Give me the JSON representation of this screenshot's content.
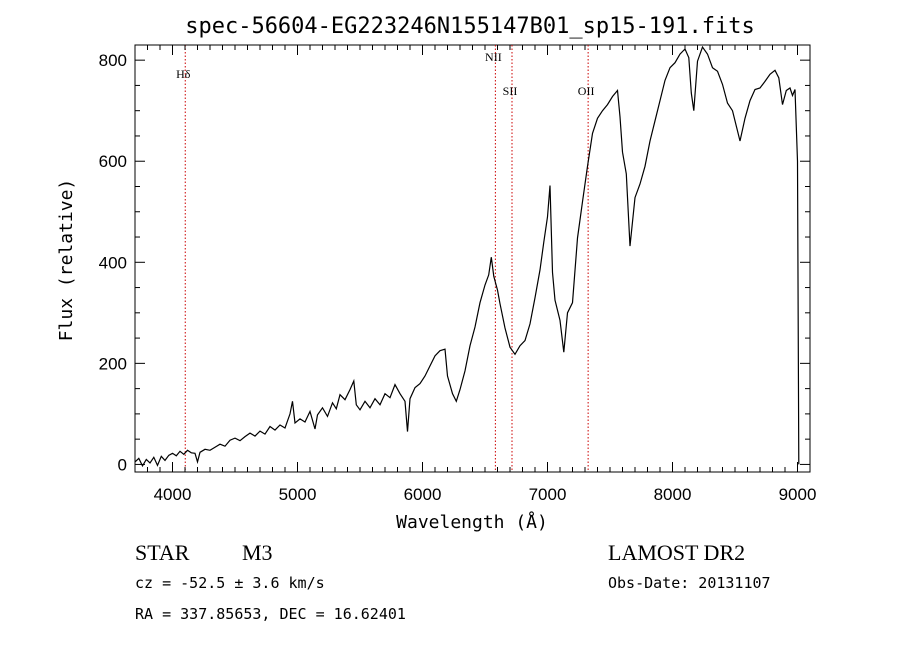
{
  "chart_data": {
    "type": "line",
    "title": "spec-56604-EG223246N155147B01_sp15-191.fits",
    "xlabel": "Wavelength (Å)",
    "ylabel": "Flux (relative)",
    "xlim": [
      3700,
      9100
    ],
    "ylim": [
      -15,
      830
    ],
    "x_ticks": [
      4000,
      5000,
      6000,
      7000,
      8000,
      9000
    ],
    "y_ticks": [
      0,
      200,
      400,
      600,
      800
    ],
    "grid": false,
    "series": [
      {
        "points": [
          [
            3700,
            5
          ],
          [
            3730,
            12
          ],
          [
            3760,
            -3
          ],
          [
            3790,
            10
          ],
          [
            3820,
            3
          ],
          [
            3850,
            14
          ],
          [
            3880,
            -2
          ],
          [
            3910,
            16
          ],
          [
            3940,
            8
          ],
          [
            3970,
            18
          ],
          [
            4000,
            22
          ],
          [
            4030,
            17
          ],
          [
            4060,
            26
          ],
          [
            4090,
            20
          ],
          [
            4120,
            28
          ],
          [
            4150,
            23
          ],
          [
            4180,
            22
          ],
          [
            4200,
            5
          ],
          [
            4220,
            24
          ],
          [
            4260,
            30
          ],
          [
            4300,
            28
          ],
          [
            4340,
            34
          ],
          [
            4380,
            40
          ],
          [
            4420,
            36
          ],
          [
            4460,
            48
          ],
          [
            4500,
            52
          ],
          [
            4540,
            47
          ],
          [
            4580,
            55
          ],
          [
            4620,
            62
          ],
          [
            4660,
            56
          ],
          [
            4700,
            66
          ],
          [
            4740,
            60
          ],
          [
            4780,
            75
          ],
          [
            4820,
            68
          ],
          [
            4860,
            78
          ],
          [
            4900,
            72
          ],
          [
            4940,
            100
          ],
          [
            4960,
            125
          ],
          [
            4980,
            82
          ],
          [
            5020,
            90
          ],
          [
            5060,
            84
          ],
          [
            5100,
            105
          ],
          [
            5140,
            70
          ],
          [
            5160,
            98
          ],
          [
            5200,
            112
          ],
          [
            5240,
            95
          ],
          [
            5280,
            122
          ],
          [
            5310,
            110
          ],
          [
            5340,
            138
          ],
          [
            5380,
            128
          ],
          [
            5420,
            148
          ],
          [
            5450,
            165
          ],
          [
            5470,
            118
          ],
          [
            5500,
            108
          ],
          [
            5540,
            125
          ],
          [
            5580,
            112
          ],
          [
            5620,
            130
          ],
          [
            5660,
            118
          ],
          [
            5700,
            140
          ],
          [
            5740,
            132
          ],
          [
            5780,
            158
          ],
          [
            5820,
            140
          ],
          [
            5860,
            125
          ],
          [
            5880,
            65
          ],
          [
            5900,
            130
          ],
          [
            5940,
            152
          ],
          [
            5980,
            160
          ],
          [
            6020,
            175
          ],
          [
            6060,
            195
          ],
          [
            6100,
            215
          ],
          [
            6140,
            225
          ],
          [
            6180,
            228
          ],
          [
            6200,
            175
          ],
          [
            6240,
            140
          ],
          [
            6270,
            125
          ],
          [
            6300,
            148
          ],
          [
            6340,
            185
          ],
          [
            6380,
            235
          ],
          [
            6420,
            272
          ],
          [
            6460,
            320
          ],
          [
            6500,
            355
          ],
          [
            6530,
            375
          ],
          [
            6550,
            410
          ],
          [
            6570,
            372
          ],
          [
            6600,
            345
          ],
          [
            6620,
            318
          ],
          [
            6660,
            270
          ],
          [
            6700,
            232
          ],
          [
            6740,
            218
          ],
          [
            6780,
            235
          ],
          [
            6820,
            245
          ],
          [
            6860,
            278
          ],
          [
            6900,
            330
          ],
          [
            6940,
            385
          ],
          [
            6970,
            440
          ],
          [
            7000,
            490
          ],
          [
            7020,
            552
          ],
          [
            7040,
            380
          ],
          [
            7060,
            325
          ],
          [
            7100,
            285
          ],
          [
            7130,
            222
          ],
          [
            7160,
            300
          ],
          [
            7200,
            320
          ],
          [
            7240,
            448
          ],
          [
            7280,
            520
          ],
          [
            7320,
            590
          ],
          [
            7360,
            655
          ],
          [
            7400,
            685
          ],
          [
            7440,
            700
          ],
          [
            7480,
            712
          ],
          [
            7520,
            728
          ],
          [
            7560,
            740
          ],
          [
            7580,
            688
          ],
          [
            7600,
            618
          ],
          [
            7630,
            575
          ],
          [
            7660,
            432
          ],
          [
            7700,
            528
          ],
          [
            7740,
            555
          ],
          [
            7780,
            590
          ],
          [
            7820,
            640
          ],
          [
            7860,
            680
          ],
          [
            7900,
            720
          ],
          [
            7940,
            760
          ],
          [
            7980,
            785
          ],
          [
            8020,
            795
          ],
          [
            8060,
            812
          ],
          [
            8100,
            822
          ],
          [
            8130,
            805
          ],
          [
            8150,
            735
          ],
          [
            8170,
            700
          ],
          [
            8200,
            798
          ],
          [
            8240,
            826
          ],
          [
            8280,
            812
          ],
          [
            8320,
            785
          ],
          [
            8360,
            778
          ],
          [
            8400,
            752
          ],
          [
            8440,
            715
          ],
          [
            8480,
            700
          ],
          [
            8520,
            660
          ],
          [
            8540,
            640
          ],
          [
            8580,
            685
          ],
          [
            8620,
            720
          ],
          [
            8660,
            742
          ],
          [
            8700,
            745
          ],
          [
            8740,
            758
          ],
          [
            8780,
            772
          ],
          [
            8820,
            780
          ],
          [
            8850,
            765
          ],
          [
            8880,
            712
          ],
          [
            8910,
            740
          ],
          [
            8940,
            745
          ],
          [
            8960,
            730
          ],
          [
            8980,
            742
          ],
          [
            9000,
            600
          ],
          [
            9010,
            0
          ]
        ]
      }
    ],
    "annotations": [
      {
        "label": "Hδ",
        "x": 4102
      },
      {
        "label": "NII",
        "x": 6583
      },
      {
        "label": "SII",
        "x": 6716
      },
      {
        "label": "OII",
        "x": 7325
      }
    ],
    "colors": {
      "spectrum": "#000000",
      "lines": "#cc0000",
      "axes": "#000000"
    }
  },
  "info": {
    "class_label": "STAR",
    "subclass": "M3",
    "survey": "LAMOST DR2",
    "cz": "cz = -52.5 ± 3.6 km/s",
    "obs_date": "Obs-Date: 20131107",
    "radec": "RA = 337.85653, DEC =  16.62401"
  }
}
